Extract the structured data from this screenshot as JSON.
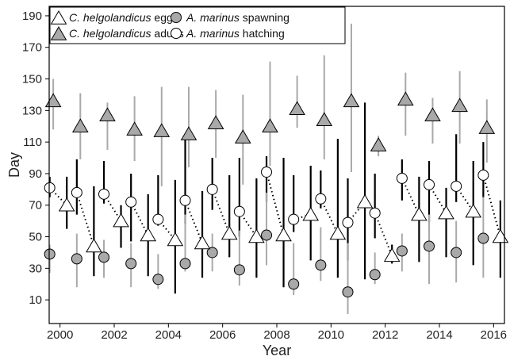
{
  "chart_data": {
    "type": "scatter",
    "xlabel": "Year",
    "ylabel": "Day",
    "xlim": [
      1999.6,
      2016.4
    ],
    "ylim": [
      -5,
      196
    ],
    "x_ticks": [
      2000,
      2002,
      2004,
      2006,
      2008,
      2010,
      2012,
      2014,
      2016
    ],
    "y_ticks": [
      10,
      30,
      50,
      70,
      90,
      110,
      130,
      150,
      170,
      190
    ],
    "legend_position": "top-left",
    "grid": false,
    "legend": [
      {
        "species": "C. helgolandicus",
        "stage": "eggs",
        "series_key": "c_eggs"
      },
      {
        "species": "A. marinus",
        "stage": "spawning",
        "series_key": "a_spawning"
      },
      {
        "species": "C. helgolandicus",
        "stage": "adults",
        "series_key": "c_adults"
      },
      {
        "species": "A. marinus",
        "stage": "hatching",
        "series_key": "a_hatching"
      }
    ],
    "colors": {
      "gray_fill": "#a9a9a9",
      "gray_line": "#a9a9a9",
      "white_fill": "#ffffff",
      "black": "#000000"
    },
    "series": {
      "c_adults": {
        "name": "C. helgolandicus adults",
        "marker": "triangle",
        "fill": "#a9a9a9",
        "offset": -0.25,
        "points": [
          {
            "x": 2000,
            "y": 136,
            "low": 118,
            "high": 150
          },
          {
            "x": 2001,
            "y": 120,
            "low": 99,
            "high": 141
          },
          {
            "x": 2002,
            "y": 127,
            "low": 105,
            "high": 135
          },
          {
            "x": 2003,
            "y": 118,
            "low": 98,
            "high": 139
          },
          {
            "x": 2004,
            "y": 117,
            "low": 82,
            "high": 145
          },
          {
            "x": 2005,
            "y": 115,
            "low": 94,
            "high": 145
          },
          {
            "x": 2006,
            "y": 122,
            "low": 100,
            "high": 143
          },
          {
            "x": 2007,
            "y": 113,
            "low": 83,
            "high": 140
          },
          {
            "x": 2008,
            "y": 120,
            "low": 95,
            "high": 161
          },
          {
            "x": 2009,
            "y": 131,
            "low": 119,
            "high": 152
          },
          {
            "x": 2010,
            "y": 124,
            "low": 99,
            "high": 165
          },
          {
            "x": 2011,
            "y": 136,
            "low": 91,
            "high": 185
          },
          {
            "x": 2012,
            "y": 108,
            "low": 101,
            "high": 114
          },
          {
            "x": 2013,
            "y": 137,
            "low": 114,
            "high": 154
          },
          {
            "x": 2014,
            "y": 127,
            "low": 109,
            "high": 138
          },
          {
            "x": 2015,
            "y": 133,
            "low": 109,
            "high": 155
          },
          {
            "x": 2016,
            "y": 119,
            "low": 97,
            "high": 137
          }
        ]
      },
      "a_hatching": {
        "name": "A. marinus hatching",
        "marker": "circle",
        "fill": "#ffffff",
        "offset": -0.38,
        "points": [
          {
            "x": 2000,
            "y": 81,
            "low": 75,
            "high": 88
          },
          {
            "x": 2001,
            "y": 78,
            "low": 64,
            "high": 99
          },
          {
            "x": 2002,
            "y": 77,
            "low": 71,
            "high": 98
          },
          {
            "x": 2003,
            "y": 72,
            "low": 47,
            "high": 90
          },
          {
            "x": 2004,
            "y": 61,
            "low": 57,
            "high": 89
          },
          {
            "x": 2005,
            "y": 73,
            "low": 58,
            "high": 115
          },
          {
            "x": 2006,
            "y": 80,
            "low": 67,
            "high": 100
          },
          {
            "x": 2007,
            "y": 66,
            "low": 50,
            "high": 100
          },
          {
            "x": 2008,
            "y": 91,
            "low": 72,
            "high": 101
          },
          {
            "x": 2009,
            "y": 61,
            "low": 53,
            "high": 89
          },
          {
            "x": 2010,
            "y": 74,
            "low": 68,
            "high": 92
          },
          {
            "x": 2011,
            "y": 59,
            "low": 35,
            "high": 87
          },
          {
            "x": 2012,
            "y": 65,
            "low": 49,
            "high": 90
          },
          {
            "x": 2013,
            "y": 87,
            "low": 73,
            "high": 99
          },
          {
            "x": 2014,
            "y": 83,
            "low": 59,
            "high": 98
          },
          {
            "x": 2015,
            "y": 82,
            "low": 72,
            "high": 115
          },
          {
            "x": 2016,
            "y": 89,
            "low": 75,
            "high": 110
          }
        ]
      },
      "a_spawning": {
        "name": "A. marinus spawning",
        "marker": "circle",
        "fill": "#a9a9a9",
        "offset": -0.38,
        "points": [
          {
            "x": 2000,
            "y": 39,
            "low": 27,
            "high": 45
          },
          {
            "x": 2001,
            "y": 36,
            "low": 18,
            "high": 52
          },
          {
            "x": 2002,
            "y": 37,
            "low": 24,
            "high": 48
          },
          {
            "x": 2003,
            "y": 33,
            "low": 18,
            "high": 46
          },
          {
            "x": 2004,
            "y": 23,
            "low": 17,
            "high": 39
          },
          {
            "x": 2005,
            "y": 33,
            "low": 28,
            "high": 64
          },
          {
            "x": 2006,
            "y": 40,
            "low": 28,
            "high": 52
          },
          {
            "x": 2007,
            "y": 29,
            "low": 19,
            "high": 54
          },
          {
            "x": 2008,
            "y": 51,
            "low": 32,
            "high": 78
          },
          {
            "x": 2009,
            "y": 20,
            "low": 13,
            "high": 46
          },
          {
            "x": 2010,
            "y": 32,
            "low": 22,
            "high": 56
          },
          {
            "x": 2011,
            "y": 15,
            "low": 1,
            "high": 46
          },
          {
            "x": 2012,
            "y": 26,
            "low": 20,
            "high": 40
          },
          {
            "x": 2013,
            "y": 41,
            "low": 28,
            "high": 52
          },
          {
            "x": 2014,
            "y": 44,
            "low": 20,
            "high": 64
          },
          {
            "x": 2015,
            "y": 40,
            "low": 21,
            "high": 60
          },
          {
            "x": 2016,
            "y": 49,
            "low": 24,
            "high": 75
          }
        ]
      },
      "c_eggs": {
        "name": "C. helgolandicus eggs",
        "marker": "triangle",
        "fill": "#ffffff",
        "offset": 0.25,
        "points": [
          {
            "x": 2000,
            "y": 70,
            "low": 55,
            "high": 88
          },
          {
            "x": 2001,
            "y": 44,
            "low": 25,
            "high": 82
          },
          {
            "x": 2002,
            "y": 60,
            "low": 43,
            "high": 70
          },
          {
            "x": 2003,
            "y": 51,
            "low": 25,
            "high": 77
          },
          {
            "x": 2004,
            "y": 48,
            "low": 14,
            "high": 86
          },
          {
            "x": 2005,
            "y": 46,
            "low": 24,
            "high": 79
          },
          {
            "x": 2006,
            "y": 52,
            "low": 37,
            "high": 89
          },
          {
            "x": 2007,
            "y": 50,
            "low": 24,
            "high": 87
          },
          {
            "x": 2008,
            "y": 51,
            "low": 18,
            "high": 100
          },
          {
            "x": 2009,
            "y": 64,
            "low": 35,
            "high": 95
          },
          {
            "x": 2010,
            "y": 52,
            "low": 24,
            "high": 112
          },
          {
            "x": 2011,
            "y": 72,
            "low": 23,
            "high": 135
          },
          {
            "x": 2012,
            "y": 38,
            "low": 33,
            "high": 45
          },
          {
            "x": 2013,
            "y": 64,
            "low": 34,
            "high": 88
          },
          {
            "x": 2014,
            "y": 65,
            "low": 37,
            "high": 81
          },
          {
            "x": 2015,
            "y": 66,
            "low": 32,
            "high": 98
          },
          {
            "x": 2016,
            "y": 50,
            "low": 24,
            "high": 73
          }
        ]
      }
    }
  }
}
